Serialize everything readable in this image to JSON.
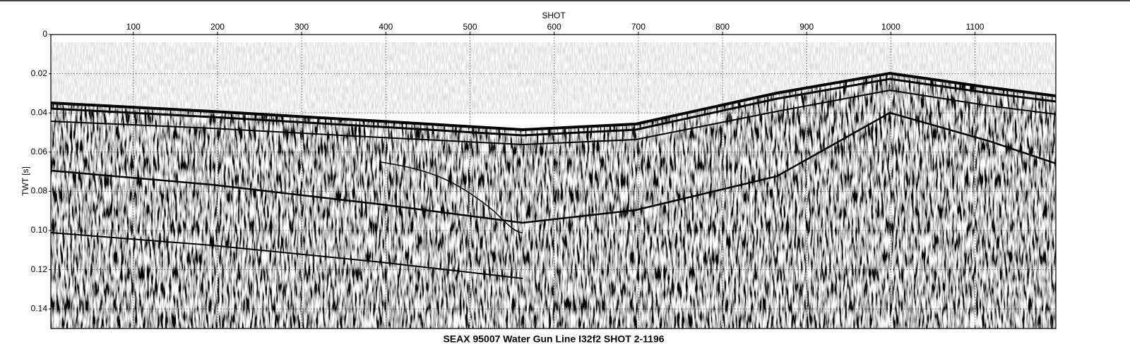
{
  "chart_data": {
    "type": "seismic",
    "title": "SEAX 95007 Water Gun Line I32f2 SHOT 2-1196",
    "xlabel": "SHOT",
    "ylabel": "TWT [s]",
    "xlim": [
      2,
      1196
    ],
    "xticks": [
      100,
      200,
      300,
      400,
      500,
      600,
      700,
      800,
      900,
      1000,
      1100
    ],
    "ylim": [
      0,
      0.15
    ],
    "y_inverted": true,
    "yticks": [
      0,
      0.02,
      0.04,
      0.06,
      0.08,
      {
        "value": 0.1,
        "label": "0.10"
      },
      0.12,
      0.14
    ],
    "grid": true
  }
}
